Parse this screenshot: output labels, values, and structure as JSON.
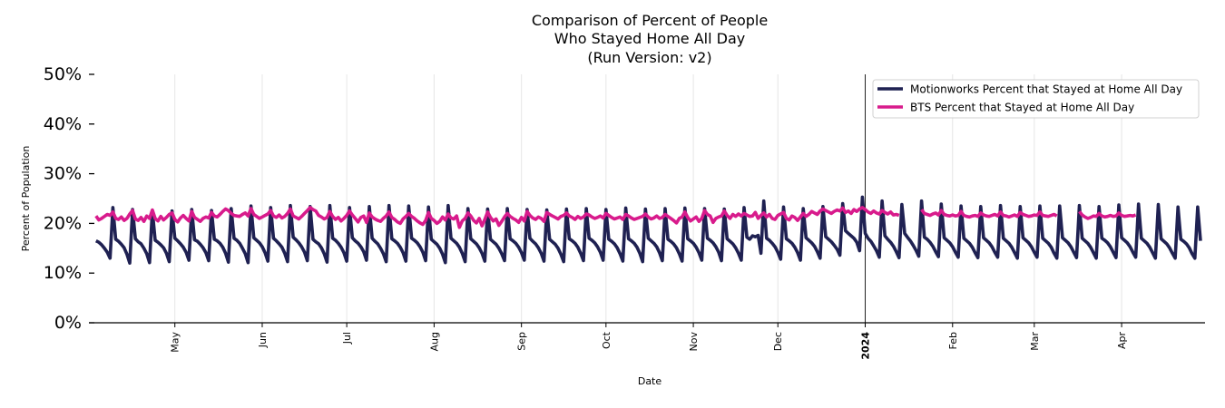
{
  "chart_data": {
    "type": "line",
    "title_lines": [
      "Comparison of Percent of People",
      "Who Stayed Home All Day",
      "(Run Version: v2)"
    ],
    "xlabel": "Date",
    "ylabel": "Percent of Population",
    "ylim": [
      0,
      50
    ],
    "yticks": [
      0,
      10,
      20,
      30,
      40,
      50
    ],
    "ytick_labels": [
      "0%",
      "10%",
      "20%",
      "30%",
      "40%",
      "50%"
    ],
    "xlim": [
      "2023-04-01",
      "2024-04-30"
    ],
    "xticks": [
      {
        "date": "2023-05-01",
        "label": "May",
        "bold": false
      },
      {
        "date": "2023-06-01",
        "label": "Jun",
        "bold": false
      },
      {
        "date": "2023-07-01",
        "label": "Jul",
        "bold": false
      },
      {
        "date": "2023-08-01",
        "label": "Aug",
        "bold": false
      },
      {
        "date": "2023-09-01",
        "label": "Sep",
        "bold": false
      },
      {
        "date": "2023-10-01",
        "label": "Oct",
        "bold": false
      },
      {
        "date": "2023-11-01",
        "label": "Nov",
        "bold": false
      },
      {
        "date": "2023-12-01",
        "label": "Dec",
        "bold": false
      },
      {
        "date": "2024-01-01",
        "label": "2024",
        "bold": true
      },
      {
        "date": "2024-02-01",
        "label": "Feb",
        "bold": false
      },
      {
        "date": "2024-03-01",
        "label": "Mar",
        "bold": false
      },
      {
        "date": "2024-04-01",
        "label": "Apr",
        "bold": false
      }
    ],
    "vline_date": "2024-01-01",
    "grid": "vertical",
    "legend_position": "top-right",
    "x_start_date": "2023-04-03",
    "x_step": "1 day",
    "series": [
      {
        "name": "Motionworks Percent that Stayed at Home All Day",
        "color": "#1f2152",
        "values": [
          16.5,
          16.2,
          15.7,
          15.0,
          14.2,
          13.0,
          23.2,
          16.8,
          16.4,
          15.8,
          15.1,
          13.8,
          12.0,
          22.8,
          16.9,
          16.3,
          15.9,
          15.0,
          13.9,
          12.1,
          22.6,
          16.6,
          16.2,
          15.7,
          15.1,
          14.0,
          12.3,
          22.5,
          17.0,
          16.5,
          15.9,
          15.2,
          14.2,
          12.6,
          22.8,
          16.7,
          16.4,
          15.8,
          15.1,
          14.1,
          12.5,
          22.6,
          16.8,
          16.5,
          16.0,
          15.2,
          14.0,
          12.2,
          23.0,
          17.0,
          16.6,
          16.0,
          15.0,
          13.9,
          12.1,
          23.5,
          17.1,
          16.6,
          16.1,
          15.3,
          14.1,
          12.4,
          23.2,
          17.0,
          16.5,
          15.9,
          15.2,
          14.0,
          12.3,
          23.6,
          17.2,
          16.7,
          16.1,
          15.3,
          14.2,
          12.5,
          23.4,
          16.8,
          16.3,
          15.9,
          15.1,
          13.9,
          12.2,
          23.6,
          17.0,
          16.6,
          16.0,
          15.2,
          14.1,
          12.4,
          23.2,
          17.1,
          16.5,
          16.0,
          15.3,
          14.3,
          12.6,
          23.4,
          17.0,
          16.4,
          15.9,
          15.0,
          13.9,
          12.3,
          23.6,
          16.9,
          16.5,
          16.0,
          15.2,
          14.1,
          12.4,
          23.5,
          17.0,
          16.6,
          16.1,
          15.3,
          14.2,
          12.5,
          23.3,
          16.8,
          16.3,
          15.8,
          15.0,
          13.8,
          12.1,
          23.6,
          17.0,
          16.5,
          16.0,
          15.2,
          14.0,
          12.3,
          23.0,
          16.9,
          16.4,
          15.9,
          15.1,
          14.0,
          12.4,
          22.9,
          16.8,
          16.3,
          15.8,
          15.0,
          13.9,
          12.5,
          23.0,
          16.9,
          16.5,
          16.0,
          15.2,
          14.1,
          12.6,
          22.8,
          17.0,
          16.4,
          15.9,
          15.1,
          14.0,
          12.4,
          22.7,
          16.8,
          16.3,
          15.8,
          15.0,
          13.8,
          12.3,
          22.9,
          16.9,
          16.5,
          16.0,
          15.2,
          14.0,
          12.5,
          23.0,
          17.0,
          16.6,
          16.1,
          15.3,
          14.2,
          12.6,
          22.8,
          16.8,
          16.4,
          15.9,
          15.1,
          13.9,
          12.4,
          23.1,
          16.9,
          16.5,
          16.0,
          15.2,
          14.0,
          12.3,
          22.9,
          17.0,
          16.5,
          16.0,
          15.3,
          14.1,
          12.5,
          23.0,
          16.8,
          16.4,
          15.9,
          15.1,
          13.9,
          12.4,
          23.1,
          16.9,
          16.5,
          16.0,
          15.2,
          14.1,
          12.6,
          23.0,
          17.0,
          16.6,
          16.1,
          15.3,
          14.2,
          12.5,
          22.9,
          16.9,
          16.4,
          15.9,
          15.1,
          14.0,
          12.6,
          23.2,
          17.2,
          16.8,
          17.5,
          17.3,
          17.6,
          14.0,
          24.5,
          17.0,
          16.6,
          16.0,
          15.3,
          14.2,
          12.8,
          23.3,
          16.9,
          16.5,
          16.0,
          15.2,
          14.1,
          12.6,
          23.0,
          17.1,
          16.6,
          16.1,
          15.4,
          14.3,
          13.0,
          23.4,
          17.3,
          16.8,
          16.3,
          15.6,
          14.8,
          13.6,
          24.0,
          18.5,
          18.0,
          17.5,
          17.0,
          16.2,
          14.5,
          25.3,
          18.0,
          17.0,
          16.4,
          15.5,
          14.5,
          13.2,
          24.5,
          17.5,
          16.8,
          16.2,
          15.4,
          14.3,
          13.1,
          23.8,
          18.0,
          17.2,
          16.5,
          15.6,
          14.6,
          13.4,
          24.5,
          17.2,
          16.8,
          16.2,
          15.4,
          14.3,
          13.3,
          23.9,
          17.1,
          16.6,
          16.1,
          15.3,
          14.2,
          13.2,
          23.5,
          17.0,
          16.5,
          16.0,
          15.2,
          14.1,
          13.1,
          23.4,
          17.1,
          16.6,
          16.1,
          15.3,
          14.2,
          13.2,
          23.6,
          17.0,
          16.5,
          16.0,
          15.2,
          14.1,
          13.0,
          23.4,
          17.1,
          16.6,
          16.1,
          15.3,
          14.2,
          13.2,
          23.5,
          17.0,
          16.5,
          16.0,
          15.2,
          14.0,
          13.0,
          23.5,
          17.1,
          16.6,
          16.1,
          15.3,
          14.2,
          13.1,
          23.6,
          17.0,
          16.5,
          16.0,
          15.2,
          14.1,
          13.0,
          23.4,
          17.0,
          16.6,
          16.1,
          15.3,
          14.2,
          13.1,
          23.7,
          17.1,
          16.6,
          16.1,
          15.3,
          14.2,
          13.2,
          23.9,
          17.0,
          16.5,
          16.0,
          15.2,
          14.1,
          13.0,
          23.8,
          16.9,
          16.4,
          15.9,
          15.1,
          14.0,
          13.0,
          23.3,
          16.8,
          16.4,
          15.9,
          15.1,
          13.9,
          13.0,
          23.3,
          16.5
        ]
      },
      {
        "name": "BTS Percent that Stayed at Home All Day",
        "color": "#d81b8c",
        "values": [
          21.5,
          20.7,
          21.0,
          21.4,
          21.8,
          21.6,
          22.3,
          21.0,
          20.8,
          21.3,
          20.6,
          21.0,
          21.9,
          22.6,
          20.9,
          20.6,
          21.2,
          20.4,
          21.5,
          21.0,
          22.7,
          21.0,
          20.5,
          21.4,
          20.7,
          21.2,
          21.8,
          22.1,
          20.8,
          20.3,
          21.1,
          21.6,
          21.0,
          20.5,
          22.4,
          21.2,
          20.8,
          20.4,
          21.0,
          21.3,
          21.1,
          22.2,
          21.5,
          21.3,
          21.8,
          22.4,
          22.9,
          22.6,
          22.0,
          21.6,
          21.5,
          21.4,
          21.8,
          22.1,
          21.5,
          23.0,
          21.8,
          21.4,
          21.0,
          21.3,
          21.6,
          21.9,
          22.6,
          21.5,
          21.2,
          21.7,
          21.1,
          21.4,
          22.0,
          22.9,
          21.5,
          21.2,
          20.9,
          21.4,
          22.0,
          22.6,
          23.2,
          22.8,
          22.5,
          21.6,
          21.3,
          20.9,
          21.2,
          22.4,
          21.4,
          20.8,
          21.2,
          20.5,
          21.0,
          21.6,
          22.5,
          21.7,
          21.0,
          20.3,
          21.2,
          21.5,
          20.2,
          22.1,
          21.3,
          20.9,
          20.6,
          20.4,
          21.0,
          21.5,
          22.3,
          21.2,
          20.8,
          20.3,
          20.0,
          20.9,
          21.4,
          22.0,
          21.4,
          21.0,
          20.5,
          20.1,
          19.8,
          20.6,
          22.2,
          21.0,
          20.6,
          20.0,
          20.4,
          21.3,
          20.7,
          21.9,
          21.1,
          20.9,
          21.5,
          19.2,
          20.5,
          21.0,
          22.1,
          21.5,
          20.6,
          20.1,
          21.0,
          19.5,
          20.8,
          22.3,
          21.2,
          20.5,
          20.9,
          19.6,
          20.4,
          21.3,
          22.0,
          21.4,
          21.0,
          20.7,
          20.2,
          21.2,
          20.5,
          22.4,
          21.6,
          21.1,
          20.8,
          21.3,
          21.0,
          20.4,
          22.2,
          21.8,
          21.5,
          21.2,
          20.9,
          21.4,
          21.6,
          22.1,
          21.5,
          21.2,
          20.8,
          21.4,
          21.0,
          21.3,
          21.9,
          21.7,
          21.3,
          21.0,
          21.2,
          21.5,
          21.1,
          22.0,
          21.6,
          21.2,
          20.9,
          21.1,
          21.3,
          20.8,
          21.8,
          21.5,
          21.1,
          20.8,
          21.0,
          21.2,
          21.4,
          21.9,
          21.3,
          20.9,
          21.1,
          21.5,
          21.0,
          21.2,
          21.8,
          21.4,
          21.0,
          20.6,
          20.1,
          21.0,
          21.3,
          22.3,
          21.2,
          20.5,
          20.9,
          21.3,
          20.4,
          21.0,
          22.6,
          21.8,
          21.5,
          20.2,
          21.0,
          21.3,
          21.5,
          22.5,
          21.6,
          21.0,
          21.8,
          21.4,
          21.9,
          21.5,
          22.0,
          21.7,
          21.4,
          21.5,
          22.2,
          21.0,
          21.6,
          22.1,
          21.3,
          21.8,
          21.0,
          20.8,
          21.6,
          21.9,
          22.2,
          21.0,
          20.7,
          21.5,
          21.2,
          20.6,
          21.3,
          22.0,
          21.4,
          21.8,
          22.4,
          22.1,
          21.8,
          22.5,
          22.9,
          22.6,
          22.3,
          22.0,
          22.4,
          22.7,
          22.5,
          23.1,
          22.2,
          22.5,
          22.0,
          22.8,
          22.4,
          22.9,
          23.2,
          22.8,
          22.3,
          22.0,
          22.5,
          22.1,
          21.9,
          22.6,
          22.2,
          21.9,
          22.3,
          21.7,
          21.8,
          21.6,
          null,
          null,
          null,
          null,
          null,
          null,
          null,
          22.8,
          22.0,
          21.8,
          21.6,
          21.9,
          22.1,
          21.7,
          22.6,
          21.8,
          21.6,
          21.5,
          21.7,
          21.5,
          21.6,
          22.4,
          21.6,
          21.4,
          21.3,
          21.5,
          21.6,
          21.4,
          22.1,
          21.7,
          21.5,
          21.4,
          21.6,
          21.8,
          21.5,
          22.3,
          21.6,
          21.5,
          21.3,
          21.5,
          21.7,
          21.4,
          22.2,
          21.8,
          21.6,
          21.4,
          21.5,
          21.7,
          21.6,
          22.3,
          21.6,
          21.5,
          21.4,
          21.6,
          21.8,
          21.5,
          null,
          null,
          null,
          null,
          null,
          null,
          null,
          22.4,
          21.7,
          21.3,
          21.0,
          21.2,
          21.5,
          21.4,
          22.0,
          21.5,
          21.3,
          21.4,
          21.6,
          21.4,
          21.5,
          22.1,
          21.6,
          21.4,
          21.5,
          21.6,
          21.5,
          21.7
        ]
      }
    ]
  }
}
